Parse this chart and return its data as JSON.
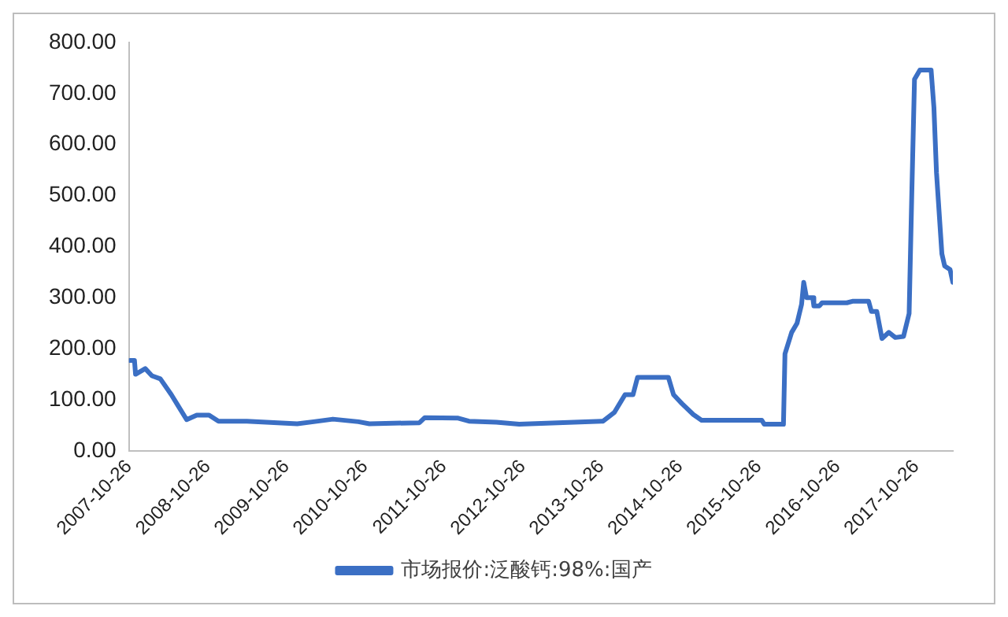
{
  "chart_data": {
    "type": "line",
    "legend": "bottom",
    "marker": "none",
    "line_style": "solid",
    "xlim": [
      "2007-10-26",
      "2018-04-14"
    ],
    "xticks": [
      "2007-10-26",
      "2008-10-26",
      "2009-10-26",
      "2010-10-26",
      "2011-10-26",
      "2012-10-26",
      "2013-10-26",
      "2014-10-26",
      "2015-10-26",
      "2016-10-26",
      "2017-10-26"
    ],
    "ylim": [
      0,
      800
    ],
    "yticks": [
      {
        "value": 0,
        "label": "0.00"
      },
      {
        "value": 100,
        "label": "100.00"
      },
      {
        "value": 200,
        "label": "200.00"
      },
      {
        "value": 300,
        "label": "300.00"
      },
      {
        "value": 400,
        "label": "400.00"
      },
      {
        "value": 500,
        "label": "500.00"
      },
      {
        "value": 600,
        "label": "600.00"
      },
      {
        "value": 700,
        "label": "700.00"
      },
      {
        "value": 800,
        "label": "800.00"
      }
    ],
    "x": [
      "2007-10-31",
      "2007-11-21",
      "2007-11-26",
      "2008-01-10",
      "2008-02-10",
      "2008-03-20",
      "2008-05-10",
      "2008-06-05",
      "2008-07-20",
      "2008-09-05",
      "2008-11-01",
      "2008-12-15",
      "2009-04-25",
      "2009-12-15",
      "2010-03-01",
      "2010-05-30",
      "2010-09-25",
      "2010-11-15",
      "2011-07-05",
      "2011-07-30",
      "2012-01-01",
      "2012-02-20",
      "2012-06-26",
      "2012-10-10",
      "2013-11-03",
      "2013-12-25",
      "2014-02-13",
      "2014-03-22",
      "2014-04-12",
      "2014-09-02",
      "2014-09-26",
      "2014-11-05",
      "2014-12-27",
      "2015-02-03",
      "2015-11-09",
      "2015-11-21",
      "2016-02-18",
      "2016-02-25",
      "2016-03-27",
      "2016-04-21",
      "2016-05-12",
      "2016-05-22",
      "2016-06-04",
      "2016-07-03",
      "2016-07-08",
      "2016-08-03",
      "2016-08-15",
      "2016-12-08",
      "2017-01-03",
      "2017-03-19",
      "2017-04-01",
      "2017-04-26",
      "2017-05-20",
      "2017-06-21",
      "2017-07-21",
      "2017-08-28",
      "2017-09-23",
      "2017-10-05",
      "2017-10-18",
      "2017-11-12",
      "2018-01-03",
      "2018-01-16",
      "2018-01-28",
      "2018-02-22",
      "2018-03-07",
      "2018-04-01",
      "2018-04-14"
    ],
    "series": [
      {
        "name": "市场报价:泛酸钙:98%:国产",
        "color": "#3b6fc4",
        "values": [
          177,
          177,
          150,
          161,
          147,
          141,
          110,
          92,
          61,
          70,
          70,
          58,
          58,
          53,
          57,
          62,
          57,
          53,
          55,
          65,
          64,
          58,
          56,
          52,
          58,
          75,
          110,
          110,
          144,
          144,
          110,
          92,
          71,
          60,
          60,
          52,
          52,
          190,
          232,
          250,
          287,
          330,
          300,
          300,
          284,
          284,
          290,
          290,
          293,
          293,
          273,
          273,
          220,
          232,
          222,
          224,
          269,
          496,
          728,
          746,
          746,
          673,
          545,
          386,
          362,
          355,
          330
        ]
      }
    ]
  }
}
